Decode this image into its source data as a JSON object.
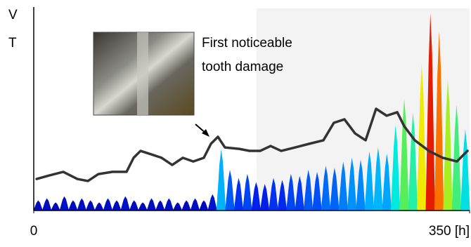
{
  "chart_data": {
    "type": "line",
    "ylabels": [
      "V",
      "T"
    ],
    "annotation": [
      "First noticeable",
      "tooth damage"
    ],
    "xlim": [
      0,
      350
    ],
    "xticks": [
      0,
      {
        "value": 350,
        "label": "350 [h]"
      }
    ],
    "ylim": [
      0,
      100
    ],
    "series": [
      {
        "color": "#333333",
        "x": [
          2.3,
          12.4,
          23.7,
          35.0,
          43.5,
          51.9,
          63.2,
          74.5,
          80.2,
          85.8,
          94.3,
          102.7,
          111.2,
          119.7,
          128.1,
          136.6,
          142.3,
          147.9,
          153.5,
          164.8,
          173.3,
          181.8,
          190.2,
          198.7,
          210.0,
          221.3,
          232.6,
          241.0,
          249.5,
          258.0,
          266.5,
          274.9,
          283.4,
          291.9,
          297.5,
          306.0,
          317.3,
          328.5,
          339.8,
          348.3
        ],
        "values": [
          15.5,
          17.2,
          19.0,
          15.5,
          14.5,
          17.9,
          19.0,
          19.0,
          25.9,
          29.3,
          27.6,
          25.9,
          22.4,
          25.9,
          24.1,
          25.9,
          32.8,
          36.2,
          31.0,
          30.3,
          29.3,
          29.3,
          31.7,
          29.3,
          31.0,
          32.8,
          34.5,
          43.1,
          44.8,
          37.9,
          34.5,
          50.0,
          46.6,
          48.3,
          41.4,
          34.5,
          29.3,
          25.9,
          24.1,
          29.3
        ]
      }
    ],
    "spectrum": {
      "colormap": [
        "#0000a0",
        "#0022ee",
        "#00aaff",
        "#00eedd",
        "#66ee44",
        "#eeee00",
        "#ff8800",
        "#dd0000"
      ],
      "x": [
        3.5,
        10.5,
        17.5,
        24.5,
        31.5,
        38.5,
        45.5,
        52.5,
        59.5,
        66.5,
        73.5,
        80.5,
        87.5,
        94.5,
        101.5,
        108.5,
        115.5,
        122.5,
        129.5,
        136.5,
        143.5,
        150.5,
        157.5,
        164.5,
        171.5,
        178.5,
        185.5,
        192.5,
        199.5,
        206.5,
        213.5,
        220.5,
        227.5,
        234.5,
        241.5,
        248.5,
        255.5,
        262.5,
        269.5,
        276.5,
        283.5,
        290.5,
        297.5,
        304.5,
        311.5,
        318.5,
        325.5,
        332.5,
        339.5,
        346.5
      ],
      "values": [
        5,
        6,
        4,
        7,
        5,
        6,
        5,
        4,
        6,
        5,
        7,
        5,
        4,
        6,
        5,
        6,
        4,
        5,
        6,
        5,
        8,
        30,
        20,
        16,
        18,
        14,
        13,
        16,
        15,
        18,
        17,
        20,
        19,
        22,
        21,
        24,
        26,
        25,
        29,
        31,
        28,
        42,
        55,
        48,
        72,
        97,
        88,
        64,
        52,
        40
      ]
    }
  }
}
